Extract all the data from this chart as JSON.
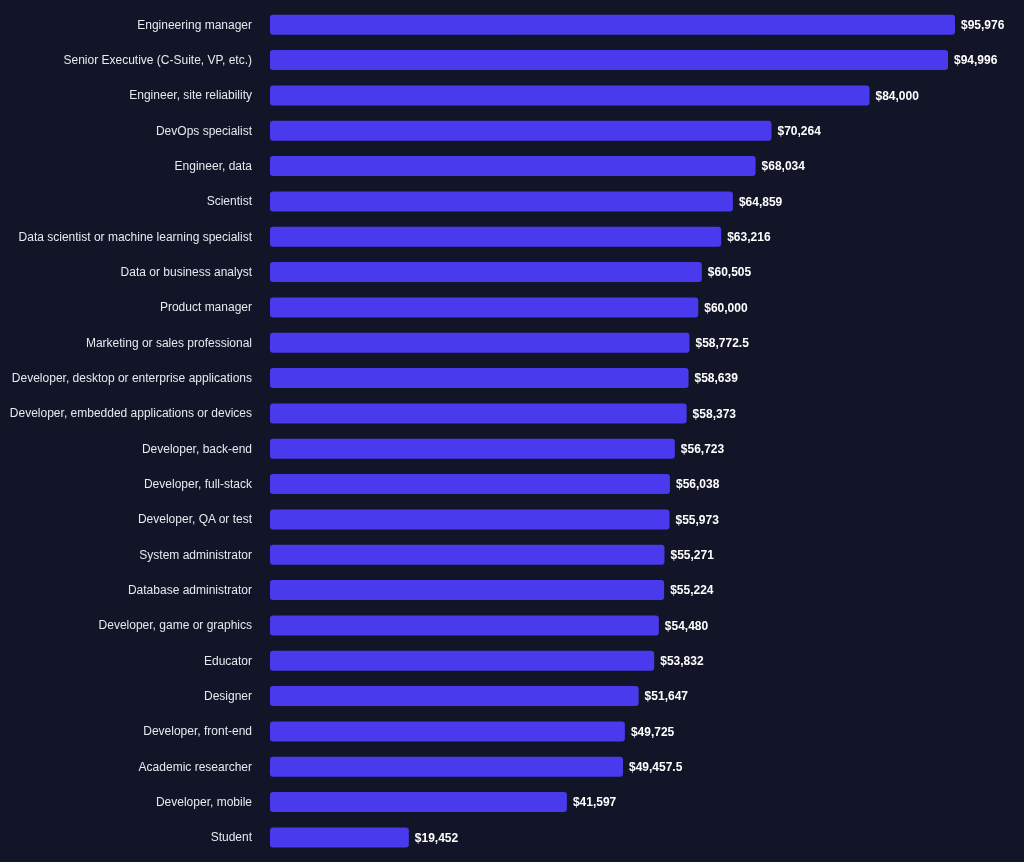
{
  "chart_data": {
    "type": "bar",
    "orientation": "horizontal",
    "color": "#4a3aed",
    "categories": [
      "Engineering manager",
      "Senior Executive (C-Suite, VP, etc.)",
      "Engineer, site reliability",
      "DevOps specialist",
      "Engineer, data",
      "Scientist",
      "Data scientist or machine learning specialist",
      "Data or business analyst",
      "Product manager",
      "Marketing or sales professional",
      "Developer, desktop or enterprise applications",
      "Developer, embedded applications or devices",
      "Developer, back-end",
      "Developer, full-stack",
      "Developer, QA or test",
      "System administrator",
      "Database administrator",
      "Developer, game or graphics",
      "Educator",
      "Designer",
      "Developer, front-end",
      "Academic researcher",
      "Developer, mobile",
      "Student"
    ],
    "values": [
      95976,
      94996,
      84000,
      70264,
      68034,
      64859,
      63216,
      60505,
      60000,
      58772.5,
      58639,
      58373,
      56723,
      56038,
      55973,
      55271,
      55224,
      54480,
      53832,
      51647,
      49725,
      49457.5,
      41597,
      19452
    ],
    "value_labels": [
      "$95,976",
      "$94,996",
      "$84,000",
      "$70,264",
      "$68,034",
      "$64,859",
      "$63,216",
      "$60,505",
      "$60,000",
      "$58,772.5",
      "$58,639",
      "$58,373",
      "$56,723",
      "$56,038",
      "$55,973",
      "$55,271",
      "$55,224",
      "$54,480",
      "$53,832",
      "$51,647",
      "$49,725",
      "$49,457.5",
      "$41,597",
      "$19,452"
    ]
  }
}
